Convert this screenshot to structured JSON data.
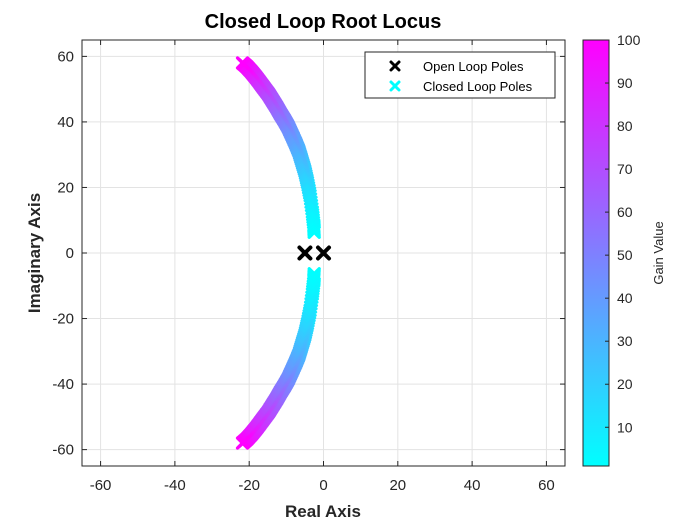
{
  "chart_data": {
    "type": "scatter",
    "title": "Closed Loop Root Locus",
    "xlabel": "Real Axis",
    "ylabel": "Imaginary Axis",
    "xlim": [
      -65,
      65
    ],
    "ylim": [
      -65,
      65
    ],
    "xticks": [
      -60,
      -40,
      -20,
      0,
      20,
      40,
      60
    ],
    "yticks": [
      -60,
      -40,
      -20,
      0,
      20,
      40,
      60
    ],
    "grid": true,
    "legend_position": "top-right",
    "series": [
      {
        "name": "Open Loop Poles",
        "marker": "x",
        "color": "#000000",
        "points": [
          [
            -5,
            0
          ],
          [
            0,
            0
          ]
        ]
      },
      {
        "name": "Closed Loop Poles",
        "marker": "x",
        "color": "#00ffff",
        "gain_range": [
          1,
          100
        ],
        "note_points": "complex-conjugate pairs, color mapped to gain",
        "points": [
          {
            "gain": 1,
            "real": -2.5,
            "imag": 6.3
          },
          {
            "gain": 2,
            "real": -2.6,
            "imag": 8.5
          },
          {
            "gain": 5,
            "real": -3.0,
            "imag": 12.5
          },
          {
            "gain": 10,
            "real": -3.6,
            "imag": 17.5
          },
          {
            "gain": 15,
            "real": -4.3,
            "imag": 21.5
          },
          {
            "gain": 20,
            "real": -5.0,
            "imag": 25
          },
          {
            "gain": 25,
            "real": -5.8,
            "imag": 28
          },
          {
            "gain": 30,
            "real": -6.6,
            "imag": 31
          },
          {
            "gain": 35,
            "real": -7.5,
            "imag": 33.5
          },
          {
            "gain": 40,
            "real": -8.5,
            "imag": 36
          },
          {
            "gain": 45,
            "real": -9.5,
            "imag": 38.5
          },
          {
            "gain": 50,
            "real": -10.5,
            "imag": 40.5
          },
          {
            "gain": 55,
            "real": -11.6,
            "imag": 42.5
          },
          {
            "gain": 60,
            "real": -12.6,
            "imag": 44.5
          },
          {
            "gain": 65,
            "real": -13.7,
            "imag": 46.5
          },
          {
            "gain": 70,
            "real": -14.8,
            "imag": 48.5
          },
          {
            "gain": 75,
            "real": -16.0,
            "imag": 50.3
          },
          {
            "gain": 80,
            "real": -17.1,
            "imag": 52
          },
          {
            "gain": 85,
            "real": -18.3,
            "imag": 53.8
          },
          {
            "gain": 90,
            "real": -19.4,
            "imag": 55.3
          },
          {
            "gain": 95,
            "real": -20.6,
            "imag": 56.8
          },
          {
            "gain": 100,
            "real": -21.8,
            "imag": 58
          }
        ]
      }
    ],
    "colorbar": {
      "label": "Gain Value",
      "range": [
        1,
        100
      ],
      "ticks": [
        10,
        20,
        30,
        40,
        50,
        60,
        70,
        80,
        90,
        100
      ],
      "color_low": "#00ffff",
      "color_high": "#ff00ff"
    }
  }
}
